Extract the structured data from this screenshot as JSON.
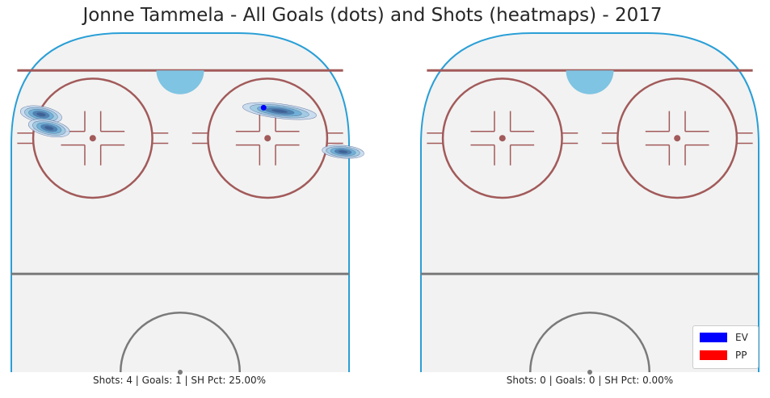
{
  "title": "Jonne Tammela - All Goals (dots) and Shots (heatmaps) - 2017",
  "colors": {
    "ev": "#0000ff",
    "pp": "#ff0000",
    "rink_border": "#2a9fd6",
    "red_line": "#a25a5a",
    "blue_line": "#7a7a7a",
    "crease": "#7fc4e2",
    "ice": "#f2f2f2"
  },
  "chart_data": [
    {
      "type": "heatmap",
      "panel": "left",
      "caption": "Shots: 4 | Goals: 1 | SH Pct: 25.00%",
      "shots": [
        {
          "x": -35,
          "y": 76,
          "situation": "EV"
        },
        {
          "x": -33,
          "y": 72,
          "situation": "EV"
        },
        {
          "x": 25,
          "y": 77,
          "situation": "EV"
        },
        {
          "x": 41,
          "y": 65,
          "situation": "EV"
        }
      ],
      "goals": [
        {
          "x": 21,
          "y": 78,
          "situation": "EV"
        }
      ]
    },
    {
      "type": "heatmap",
      "panel": "right",
      "caption": "Shots: 0 | Goals: 0 | SH Pct: 0.00%",
      "shots": [],
      "goals": []
    }
  ],
  "legend": [
    {
      "label": "EV",
      "color": "#0000ff"
    },
    {
      "label": "PP",
      "color": "#ff0000"
    }
  ]
}
